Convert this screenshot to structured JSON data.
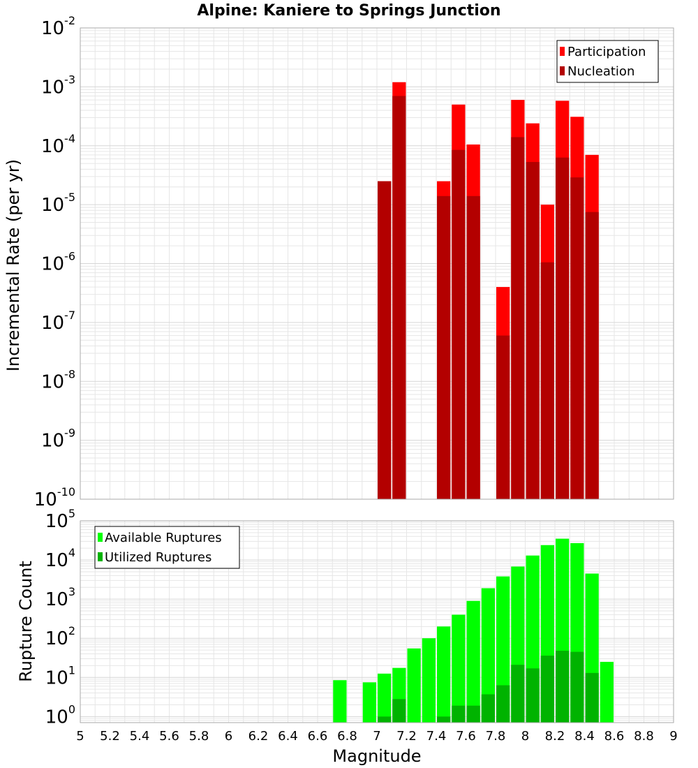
{
  "title": "Alpine: Kaniere to Springs Junction",
  "colors": {
    "participation": "#ff0000",
    "nucleation": "#b30000",
    "available": "#00ff00",
    "utilized": "#00b300",
    "grid": "#e6e6e6",
    "frame": "#aaaaaa"
  },
  "chart_data": [
    {
      "type": "bar",
      "scale": "log",
      "ylabel": "Incremental Rate (per yr)",
      "xlim": [
        5,
        9
      ],
      "ylim": [
        1e-10,
        0.01
      ],
      "grid": true,
      "legend_position": "top-right",
      "y_ticks": [
        {
          "base": "10",
          "exp": "-10",
          "value": 1e-10
        },
        {
          "base": "10",
          "exp": "-9",
          "value": 1e-09
        },
        {
          "base": "10",
          "exp": "-8",
          "value": 1e-08
        },
        {
          "base": "10",
          "exp": "-7",
          "value": 1e-07
        },
        {
          "base": "10",
          "exp": "-6",
          "value": 1e-06
        },
        {
          "base": "10",
          "exp": "-5",
          "value": 1e-05
        },
        {
          "base": "10",
          "exp": "-4",
          "value": 0.0001
        },
        {
          "base": "10",
          "exp": "-3",
          "value": 0.001
        },
        {
          "base": "10",
          "exp": "-2",
          "value": 0.01
        }
      ],
      "series": [
        {
          "name": "Participation",
          "color": "#ff0000",
          "x": [
            7.05,
            7.15,
            7.45,
            7.55,
            7.65,
            7.85,
            7.95,
            8.05,
            8.15,
            8.25,
            8.35,
            8.45
          ],
          "values": [
            2.5e-05,
            0.0012,
            2.5e-05,
            0.0005,
            0.000105,
            4e-07,
            0.0006,
            0.00024,
            1e-05,
            0.00058,
            0.00031,
            7e-05
          ]
        },
        {
          "name": "Nucleation",
          "color": "#b30000",
          "x": [
            7.05,
            7.15,
            7.45,
            7.55,
            7.65,
            7.85,
            7.95,
            8.05,
            8.15,
            8.25,
            8.35,
            8.45
          ],
          "values": [
            2.5e-05,
            0.0007,
            1.4e-05,
            8.5e-05,
            1.4e-05,
            6e-08,
            0.00014,
            5.3e-05,
            1.05e-06,
            6.3e-05,
            2.9e-05,
            7.5e-06
          ]
        }
      ]
    },
    {
      "type": "bar",
      "scale": "log",
      "xlabel": "Magnitude",
      "ylabel": "Rupture Count",
      "xlim": [
        5,
        9
      ],
      "ylim": [
        0.7,
        100000
      ],
      "grid": true,
      "legend_position": "top-left",
      "x_ticks": [
        "5",
        "5.2",
        "5.4",
        "5.6",
        "5.8",
        "6",
        "6.2",
        "6.4",
        "6.6",
        "6.8",
        "7",
        "7.2",
        "7.4",
        "7.6",
        "7.8",
        "8",
        "8.2",
        "8.4",
        "8.6",
        "8.8",
        "9"
      ],
      "y_ticks": [
        {
          "base": "10",
          "exp": "0",
          "value": 1
        },
        {
          "base": "10",
          "exp": "1",
          "value": 10
        },
        {
          "base": "10",
          "exp": "2",
          "value": 100
        },
        {
          "base": "10",
          "exp": "3",
          "value": 1000
        },
        {
          "base": "10",
          "exp": "4",
          "value": 10000
        },
        {
          "base": "10",
          "exp": "5",
          "value": 100000
        }
      ],
      "series": [
        {
          "name": "Available Ruptures",
          "color": "#00ff00",
          "x": [
            6.75,
            6.95,
            7.05,
            7.15,
            7.25,
            7.35,
            7.45,
            7.55,
            7.65,
            7.75,
            7.85,
            7.95,
            8.05,
            8.15,
            8.25,
            8.35,
            8.45,
            8.55
          ],
          "values": [
            8.5,
            7.5,
            12.5,
            17.5,
            55,
            100,
            200,
            400,
            900,
            1900,
            3800,
            6800,
            13000,
            24000,
            35000,
            27000,
            4500,
            25
          ]
        },
        {
          "name": "Utilized Ruptures",
          "color": "#00b300",
          "x": [
            7.05,
            7.15,
            7.45,
            7.55,
            7.65,
            7.75,
            7.85,
            7.95,
            8.05,
            8.15,
            8.25,
            8.35,
            8.45
          ],
          "values": [
            1,
            2.8,
            1,
            1.9,
            1.9,
            3.7,
            6.3,
            21,
            17,
            36,
            48,
            45,
            13
          ]
        }
      ]
    }
  ]
}
